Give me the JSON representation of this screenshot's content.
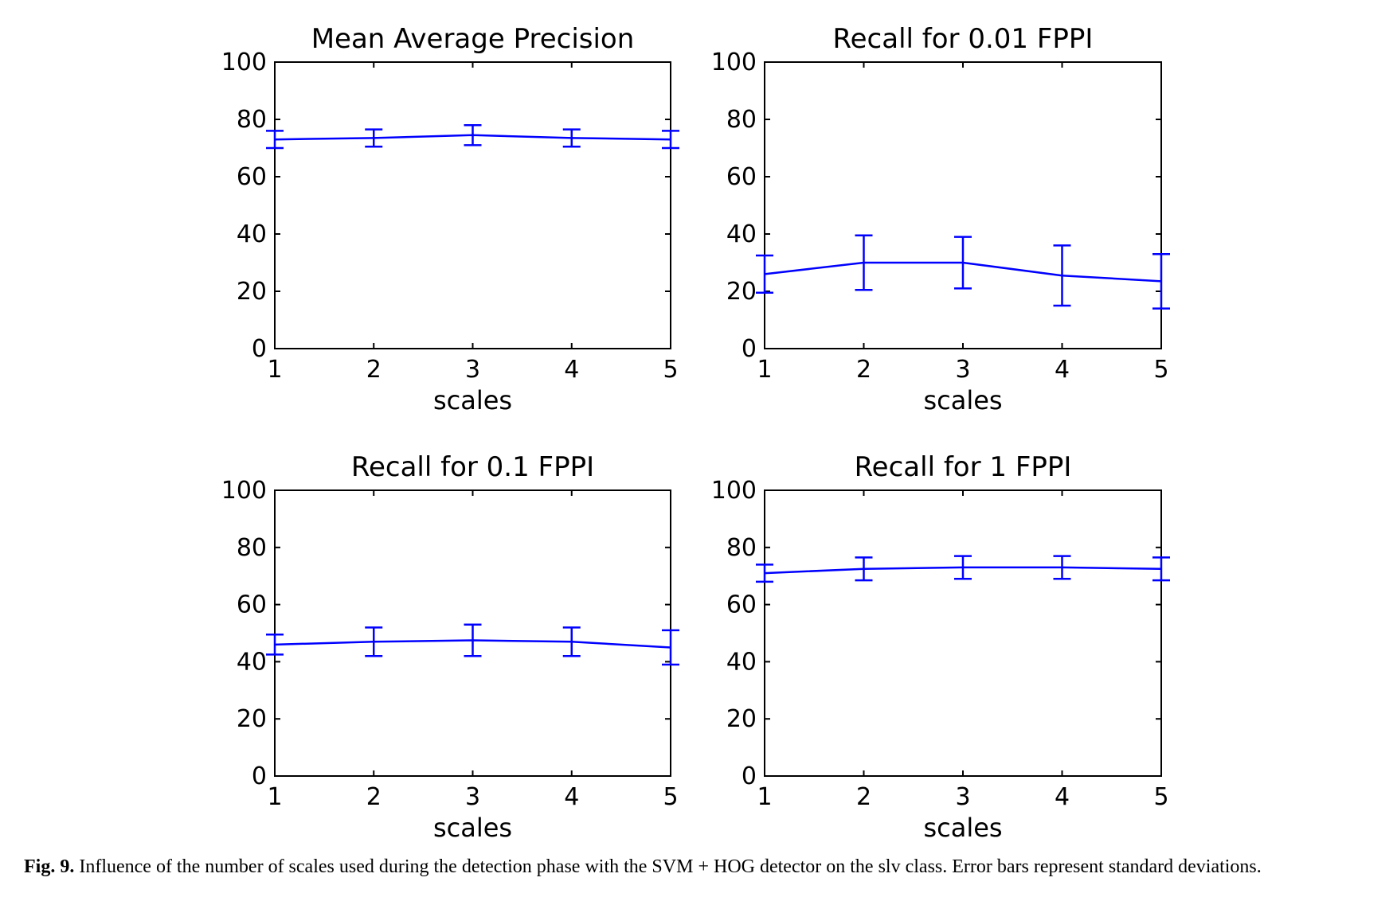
{
  "chart_data": [
    {
      "type": "line",
      "title": "Mean Average Precision",
      "xlabel": "scales",
      "ylabel": "",
      "x": [
        1,
        2,
        3,
        4,
        5
      ],
      "y": [
        73,
        73.5,
        74.5,
        73.5,
        73
      ],
      "error": [
        3,
        3,
        3.5,
        3,
        3
      ],
      "xlim": [
        1,
        5
      ],
      "ylim": [
        0,
        100
      ],
      "xticks": [
        "1",
        "2",
        "3",
        "4",
        "5"
      ],
      "yticks": [
        "0",
        "20",
        "40",
        "60",
        "80",
        "100"
      ],
      "color": "#0000ff"
    },
    {
      "type": "line",
      "title": "Recall for 0.01 FPPI",
      "xlabel": "scales",
      "ylabel": "",
      "x": [
        1,
        2,
        3,
        4,
        5
      ],
      "y": [
        26,
        30,
        30,
        25.5,
        23.5
      ],
      "error": [
        6.5,
        9.5,
        9,
        10.5,
        9.5
      ],
      "xlim": [
        1,
        5
      ],
      "ylim": [
        0,
        100
      ],
      "xticks": [
        "1",
        "2",
        "3",
        "4",
        "5"
      ],
      "yticks": [
        "0",
        "20",
        "40",
        "60",
        "80",
        "100"
      ],
      "color": "#0000ff"
    },
    {
      "type": "line",
      "title": "Recall for 0.1 FPPI",
      "xlabel": "scales",
      "ylabel": "",
      "x": [
        1,
        2,
        3,
        4,
        5
      ],
      "y": [
        46,
        47,
        47.5,
        47,
        45
      ],
      "error": [
        3.5,
        5,
        5.5,
        5,
        6
      ],
      "xlim": [
        1,
        5
      ],
      "ylim": [
        0,
        100
      ],
      "xticks": [
        "1",
        "2",
        "3",
        "4",
        "5"
      ],
      "yticks": [
        "0",
        "20",
        "40",
        "60",
        "80",
        "100"
      ],
      "color": "#0000ff"
    },
    {
      "type": "line",
      "title": "Recall for 1 FPPI",
      "xlabel": "scales",
      "ylabel": "",
      "x": [
        1,
        2,
        3,
        4,
        5
      ],
      "y": [
        71,
        72.5,
        73,
        73,
        72.5
      ],
      "error": [
        3,
        4,
        4,
        4,
        4
      ],
      "xlim": [
        1,
        5
      ],
      "ylim": [
        0,
        100
      ],
      "xticks": [
        "1",
        "2",
        "3",
        "4",
        "5"
      ],
      "yticks": [
        "0",
        "20",
        "40",
        "60",
        "80",
        "100"
      ],
      "color": "#0000ff"
    }
  ],
  "caption": {
    "label": "Fig. 9.",
    "text": "Influence of the number of scales used during the detection phase with the SVM + HOG detector on the slv class. Error bars represent standard deviations."
  }
}
